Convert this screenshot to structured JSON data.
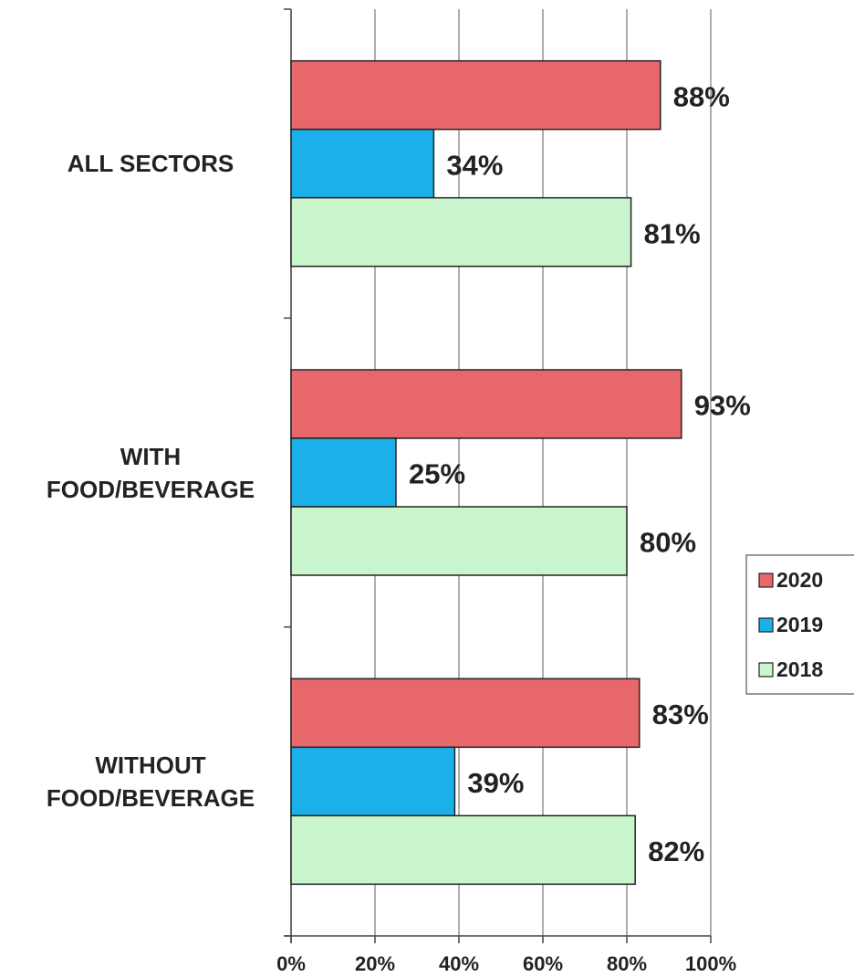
{
  "chart_data": {
    "type": "hbar",
    "categories": [
      "ALL SECTORS",
      "WITH FOOD/BEVERAGE",
      "WITHOUT FOOD/BEVERAGE"
    ],
    "series": [
      {
        "name": "2020",
        "color": "#e8676b",
        "values": [
          88,
          93,
          83
        ],
        "value_labels": [
          "88%",
          "93%",
          "83%"
        ]
      },
      {
        "name": "2019",
        "color": "#1cb0ea",
        "values": [
          34,
          25,
          39
        ],
        "value_labels": [
          "34%",
          "25%",
          "39%"
        ]
      },
      {
        "name": "2018",
        "color": "#c8f5cc",
        "values": [
          81,
          80,
          82
        ],
        "value_labels": [
          "81%",
          "80%",
          "82%"
        ]
      }
    ],
    "xlim": [
      0,
      100
    ],
    "xticks": [
      {
        "value": 0,
        "label": "0%"
      },
      {
        "value": 20,
        "label": "20%"
      },
      {
        "value": 40,
        "label": "40%"
      },
      {
        "value": 60,
        "label": "60%"
      },
      {
        "value": 80,
        "label": "80%"
      },
      {
        "value": 100,
        "label": "100%"
      }
    ],
    "grid": true,
    "legend": "right"
  }
}
